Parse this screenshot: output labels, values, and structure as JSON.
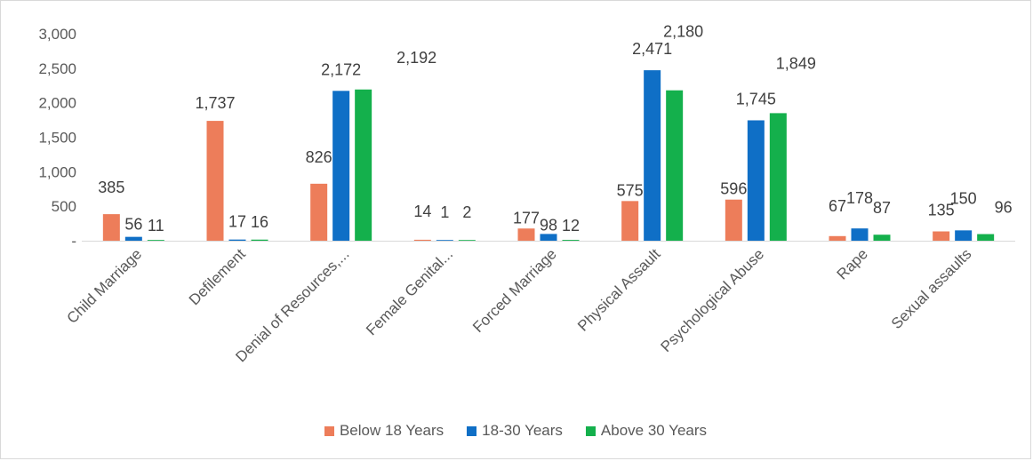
{
  "chart_data": {
    "type": "bar",
    "title": "",
    "xlabel": "",
    "ylabel": "",
    "ylim": [
      0,
      3000
    ],
    "yticks": [
      0,
      500,
      1000,
      1500,
      2000,
      2500,
      3000
    ],
    "ytick_labels": [
      "-",
      "500",
      "1,000",
      "1,500",
      "2,000",
      "2,500",
      "3,000"
    ],
    "categories": [
      "Child Marriage",
      "Defilement",
      "Denial of Resources,...",
      "Female Genital...",
      "Forced Marriage",
      "Physical Assault",
      "Psychological Abuse",
      "Rape",
      "Sexual assaults"
    ],
    "series": [
      {
        "name": "Below 18 Years",
        "color": "#ED7D5A",
        "values": [
          385,
          1737,
          826,
          14,
          177,
          575,
          596,
          67,
          135
        ],
        "labels": [
          "385",
          "1,737",
          "826",
          "14",
          "177",
          "575",
          "596",
          "67",
          "135"
        ]
      },
      {
        "name": "18-30 Years",
        "color": "#0F6FC6",
        "values": [
          56,
          17,
          2172,
          1,
          98,
          2471,
          1745,
          178,
          150
        ],
        "labels": [
          "56",
          "17",
          "2,172",
          "1",
          "98",
          "2,471",
          "1,745",
          "178",
          "150"
        ]
      },
      {
        "name": "Above 30 Years",
        "color": "#14B04C",
        "values": [
          11,
          16,
          2192,
          2,
          12,
          2180,
          1849,
          87,
          96
        ],
        "labels": [
          "11",
          "16",
          "2,192",
          "2",
          "12",
          "2,180",
          "1,849",
          "87",
          "96"
        ]
      }
    ],
    "grid": false,
    "legend_position": "bottom"
  }
}
